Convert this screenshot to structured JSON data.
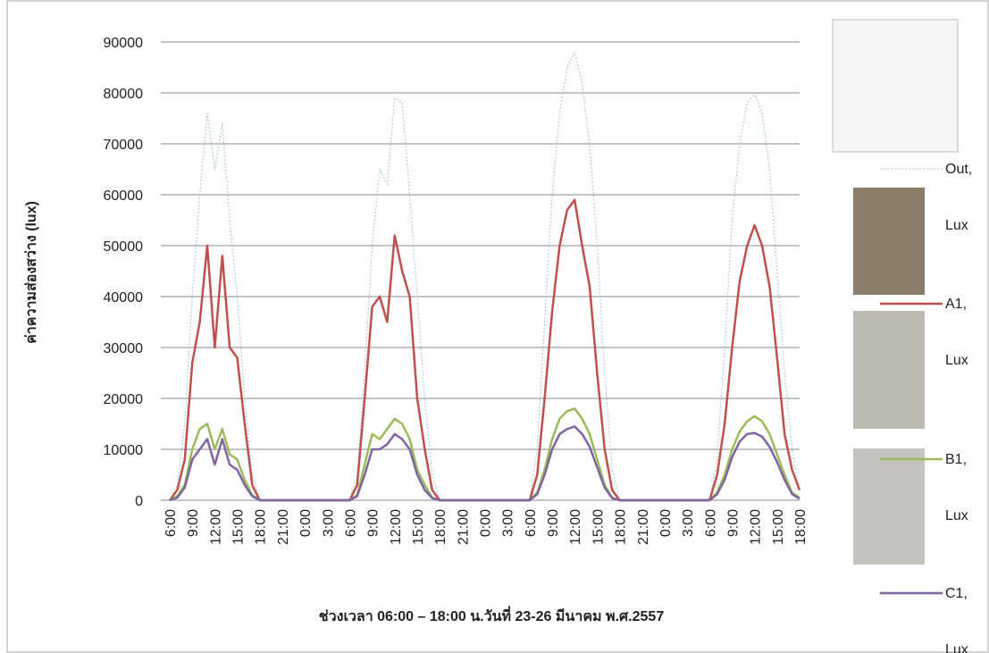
{
  "chart_data": {
    "type": "line",
    "ylabel": "ค่าความส่องสว่าง (lux)",
    "xlabel": "ช่วงเวลา 06:00 – 18:00 น.วันที่ 23-26 มีนาคม พ.ศ.2557",
    "categories": [
      "6:00",
      null,
      null,
      "9:00",
      null,
      null,
      "12:00",
      null,
      null,
      "15:00",
      null,
      null,
      "18:00",
      null,
      null,
      "21:00",
      null,
      null,
      "0:00",
      null,
      null,
      "3:00",
      null,
      null,
      "6:00",
      null,
      null,
      "9:00",
      null,
      null,
      "12:00",
      null,
      null,
      "15:00",
      null,
      null,
      "18:00",
      null,
      null,
      "21:00",
      null,
      null,
      "0:00",
      null,
      null,
      "3:00",
      null,
      null,
      "6:00",
      null,
      null,
      "9:00",
      null,
      null,
      "12:00",
      null,
      null,
      "15:00",
      null,
      null,
      "18:00",
      null,
      null,
      "21:00",
      null,
      null,
      "0:00",
      null,
      null,
      "3:00",
      null,
      null,
      "6:00",
      null,
      null,
      "9:00",
      null,
      null,
      "12:00",
      null,
      null,
      "15:00",
      null,
      null,
      "18:00"
    ],
    "series": [
      {
        "name": "Out, Lux",
        "color": "#9dc3e6",
        "values": [
          0,
          3000,
          15000,
          40000,
          60000,
          76000,
          65000,
          74000,
          55000,
          40000,
          20000,
          5000,
          0,
          0,
          0,
          0,
          0,
          0,
          0,
          0,
          0,
          0,
          0,
          0,
          0,
          5000,
          25000,
          50000,
          65000,
          62000,
          79000,
          78000,
          60000,
          40000,
          20000,
          5000,
          0,
          0,
          0,
          0,
          0,
          0,
          0,
          0,
          0,
          0,
          0,
          0,
          0,
          10000,
          35000,
          60000,
          76000,
          85000,
          88000,
          82000,
          70000,
          50000,
          25000,
          6000,
          0,
          0,
          0,
          0,
          0,
          0,
          0,
          0,
          0,
          0,
          0,
          0,
          0,
          8000,
          30000,
          55000,
          70000,
          78000,
          80000,
          76000,
          65000,
          45000,
          25000,
          10000,
          2000
        ]
      },
      {
        "name": "A1, Lux",
        "color": "#c0504d",
        "values": [
          0,
          2000,
          8000,
          27000,
          35000,
          50000,
          30000,
          48000,
          30000,
          28000,
          15000,
          3000,
          0,
          0,
          0,
          0,
          0,
          0,
          0,
          0,
          0,
          0,
          0,
          0,
          0,
          3000,
          20000,
          38000,
          40000,
          35000,
          52000,
          45000,
          40000,
          20000,
          10000,
          2000,
          0,
          0,
          0,
          0,
          0,
          0,
          0,
          0,
          0,
          0,
          0,
          0,
          0,
          5000,
          20000,
          37000,
          50000,
          57000,
          59000,
          50000,
          42000,
          25000,
          10000,
          2000,
          0,
          0,
          0,
          0,
          0,
          0,
          0,
          0,
          0,
          0,
          0,
          0,
          0,
          5000,
          15000,
          30000,
          43000,
          50000,
          54000,
          50000,
          42000,
          28000,
          13000,
          6000,
          2000
        ]
      },
      {
        "name": "B1, Lux",
        "color": "#9bbb59",
        "values": [
          0,
          800,
          3000,
          10000,
          14000,
          15000,
          10000,
          14000,
          9000,
          8000,
          4000,
          1000,
          0,
          0,
          0,
          0,
          0,
          0,
          0,
          0,
          0,
          0,
          0,
          0,
          0,
          1000,
          7000,
          13000,
          12000,
          14000,
          16000,
          15000,
          12000,
          6000,
          3000,
          500,
          0,
          0,
          0,
          0,
          0,
          0,
          0,
          0,
          0,
          0,
          0,
          0,
          0,
          1500,
          6000,
          12000,
          16000,
          17500,
          18000,
          16000,
          13000,
          8000,
          3000,
          500,
          0,
          0,
          0,
          0,
          0,
          0,
          0,
          0,
          0,
          0,
          0,
          0,
          0,
          1500,
          5000,
          10000,
          13500,
          15500,
          16500,
          15500,
          13000,
          9000,
          5000,
          1500,
          500
        ]
      },
      {
        "name": "C1, Lux",
        "color": "#8064a2",
        "values": [
          0,
          500,
          2500,
          8000,
          10000,
          12000,
          7000,
          12000,
          7000,
          6000,
          3000,
          800,
          0,
          0,
          0,
          0,
          0,
          0,
          0,
          0,
          0,
          0,
          0,
          0,
          0,
          800,
          5000,
          10000,
          10000,
          11000,
          13000,
          12000,
          10000,
          5000,
          2000,
          400,
          0,
          0,
          0,
          0,
          0,
          0,
          0,
          0,
          0,
          0,
          0,
          0,
          0,
          1200,
          5000,
          10000,
          13000,
          14000,
          14500,
          13000,
          10500,
          6500,
          2500,
          400,
          0,
          0,
          0,
          0,
          0,
          0,
          0,
          0,
          0,
          0,
          0,
          0,
          0,
          1200,
          4000,
          8500,
          11500,
          13000,
          13200,
          12500,
          10500,
          7500,
          4000,
          1200,
          300
        ]
      }
    ],
    "ylim": [
      0,
      90000
    ],
    "yticks": [
      0,
      10000,
      20000,
      30000,
      40000,
      50000,
      60000,
      70000,
      80000,
      90000
    ],
    "grid": true
  }
}
